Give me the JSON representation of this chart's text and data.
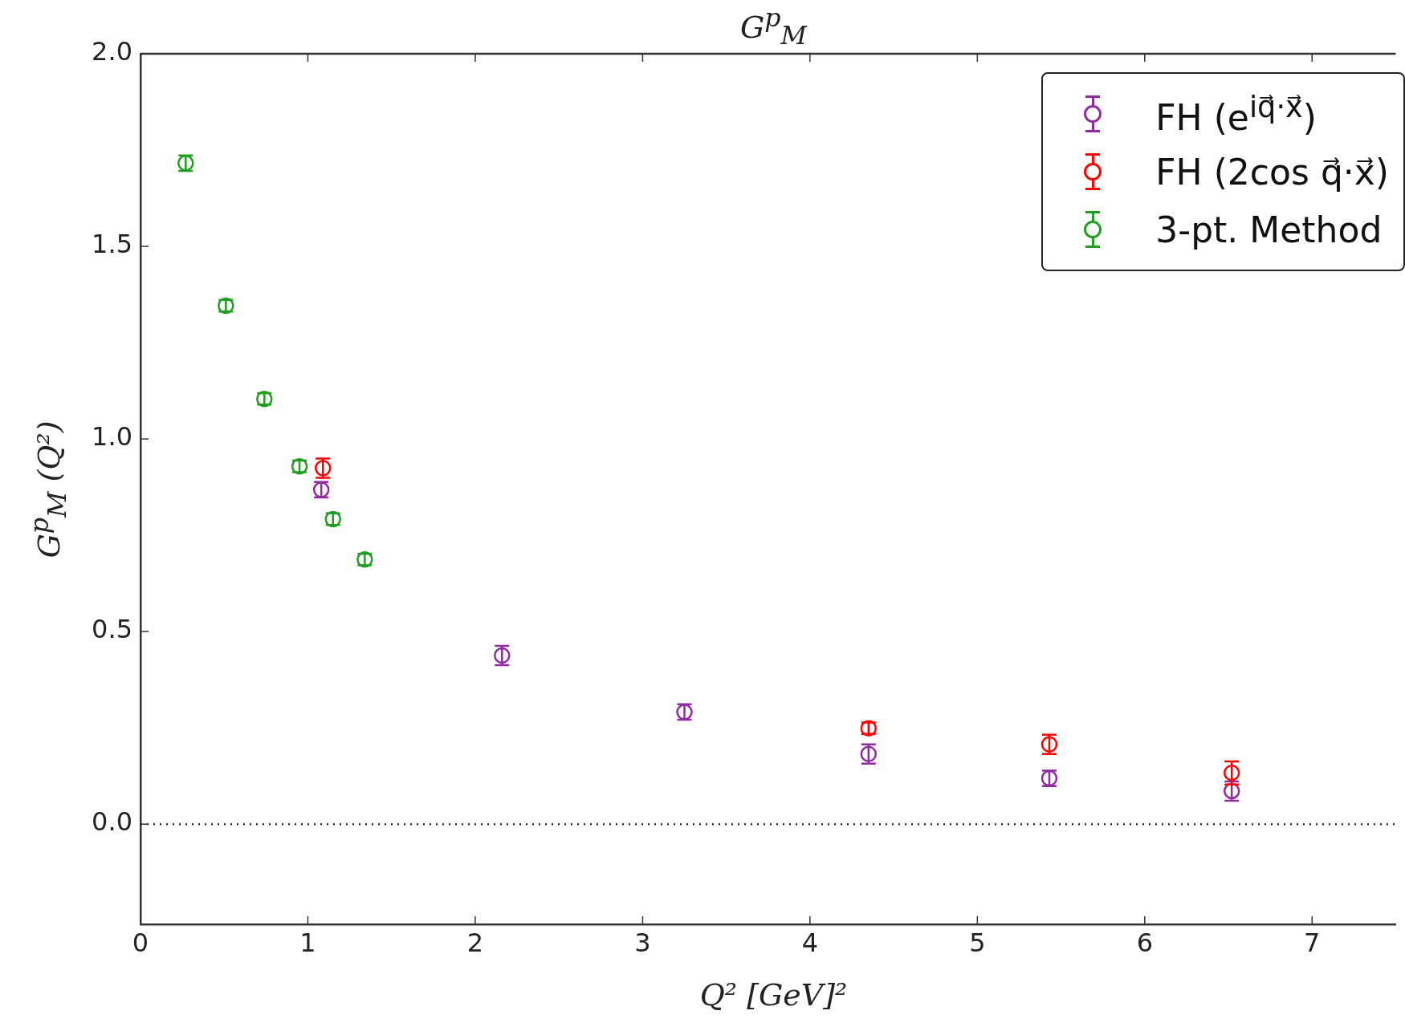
{
  "chart_data": {
    "type": "scatter",
    "title": "G$^{p}$$_{M}$",
    "xlabel": "Q² [GeV]²",
    "ylabel": "G$^{p}$$_{M}$ (Q²)",
    "xlim": [
      0,
      7.5
    ],
    "xticks": [
      0,
      1,
      2,
      3,
      4,
      5,
      6,
      7
    ],
    "ylim": [
      -0.26,
      2.0
    ],
    "yticks": [
      {
        "value": 0,
        "label": "0.0"
      },
      {
        "value": 0.5,
        "label": "0.5"
      },
      {
        "value": 1,
        "label": "1.0"
      },
      {
        "value": 1.5,
        "label": "1.5"
      },
      {
        "value": 2,
        "label": "2.0"
      }
    ],
    "grid": false,
    "legend": "top right",
    "marker": "circle",
    "ref_lines": [
      {
        "axis": "y",
        "value": 0,
        "line_style": "dotted",
        "color": "#333333"
      }
    ],
    "series": [
      {
        "name": "FH (e$^{iq⃗·x⃗}$)",
        "color": "#8e2ba0",
        "x": [
          1.08,
          2.16,
          3.25,
          4.35,
          5.43,
          6.52
        ],
        "values": [
          0.868,
          0.438,
          0.291,
          0.182,
          0.119,
          0.086
        ],
        "errors": [
          0.02,
          0.025,
          0.02,
          0.025,
          0.02,
          0.025
        ]
      },
      {
        "name": "FH (2cos q⃗·x⃗)",
        "color": "#ff0000",
        "x": [
          1.09,
          4.35,
          5.43,
          6.52
        ],
        "values": [
          0.924,
          0.249,
          0.207,
          0.133
        ],
        "errors": [
          0.025,
          0.015,
          0.025,
          0.03
        ]
      },
      {
        "name": "3-pt. Method",
        "color": "#1f9e1f",
        "x": [
          0.27,
          0.51,
          0.74,
          0.95,
          1.15,
          1.34
        ],
        "values": [
          1.716,
          1.346,
          1.104,
          0.929,
          0.792,
          0.687
        ],
        "errors": [
          0.02,
          0.015,
          0.015,
          0.015,
          0.015,
          0.015
        ]
      }
    ]
  }
}
